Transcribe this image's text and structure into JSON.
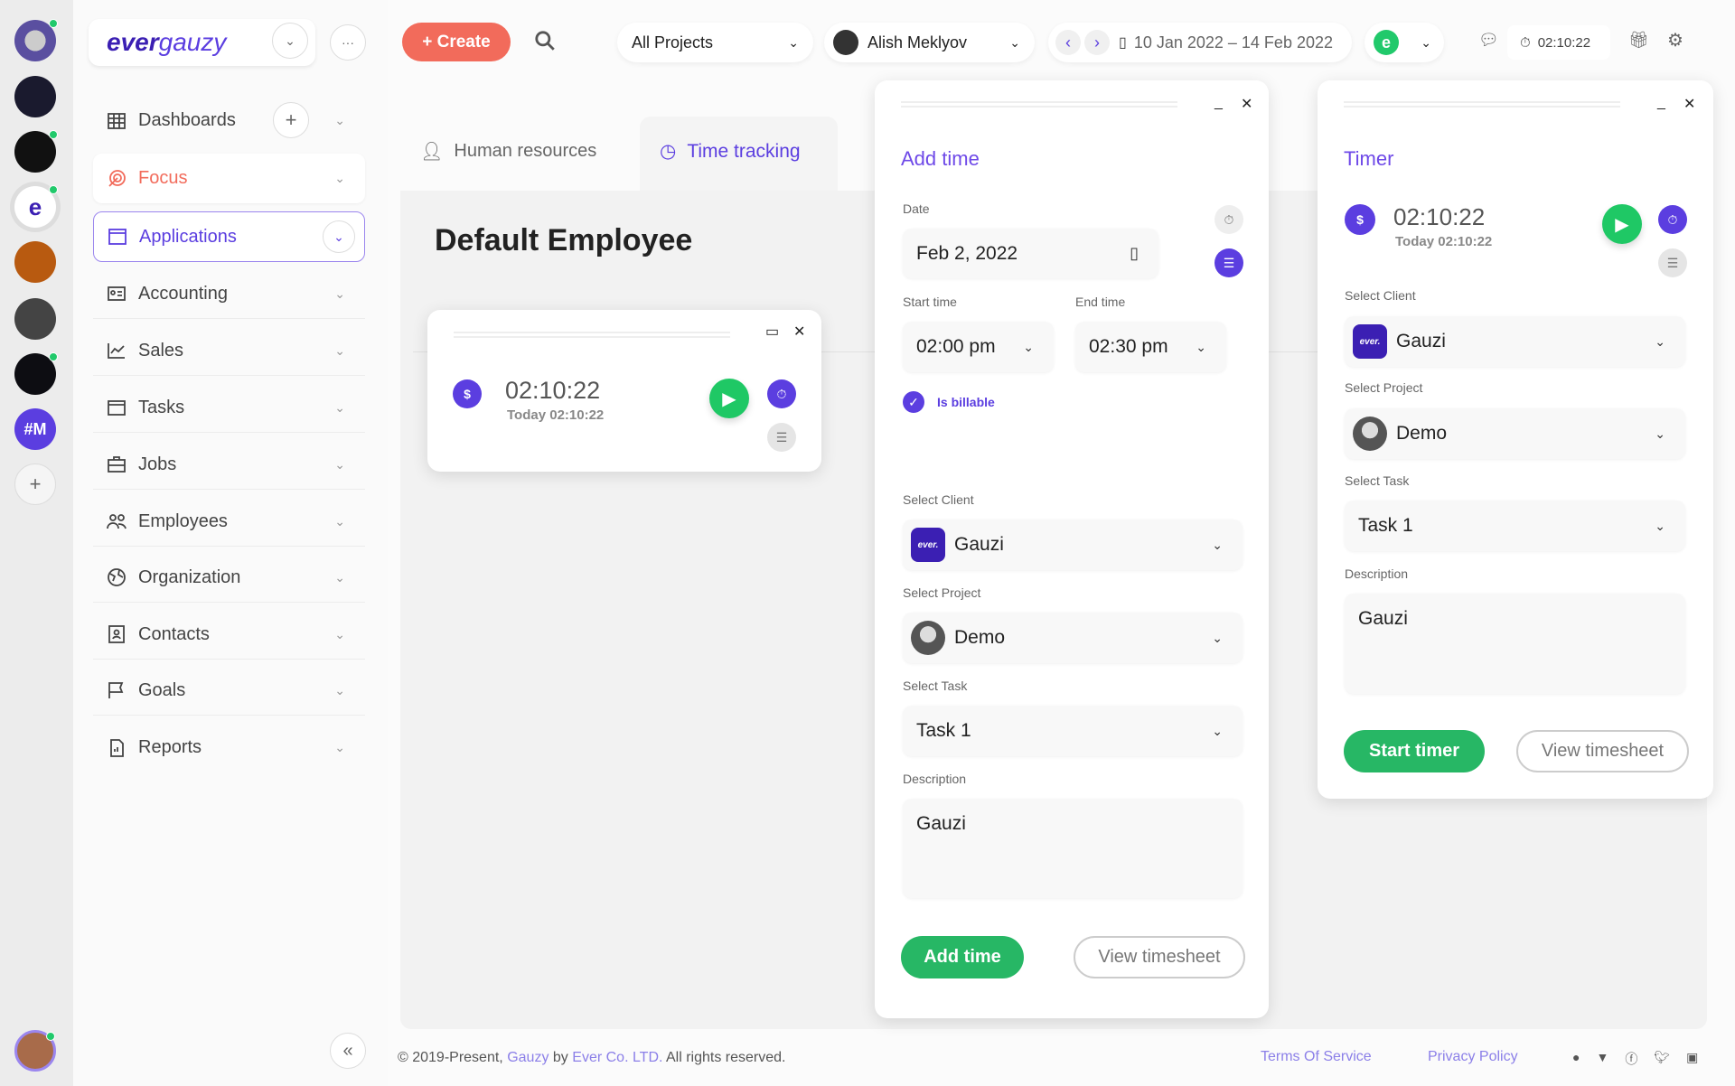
{
  "rail": {
    "workspace_initials": "#M",
    "active_letter": "e",
    "add": "+"
  },
  "logo": {
    "text_bold": "ever",
    "text_light": "gauzy"
  },
  "sidebar": {
    "items": [
      {
        "label": "Dashboards",
        "icon": "grid-icon"
      },
      {
        "label": "Focus",
        "icon": "target-icon"
      },
      {
        "label": "Applications",
        "icon": "window-icon"
      },
      {
        "label": "Accounting",
        "icon": "id-card-icon"
      },
      {
        "label": "Sales",
        "icon": "chart-line-icon"
      },
      {
        "label": "Tasks",
        "icon": "task-icon"
      },
      {
        "label": "Jobs",
        "icon": "briefcase-icon"
      },
      {
        "label": "Employees",
        "icon": "people-icon"
      },
      {
        "label": "Organization",
        "icon": "globe-icon"
      },
      {
        "label": "Contacts",
        "icon": "contacts-icon"
      },
      {
        "label": "Goals",
        "icon": "flag-icon"
      },
      {
        "label": "Reports",
        "icon": "report-icon"
      }
    ],
    "collapse": "«"
  },
  "header": {
    "create": "Create",
    "project_select": "All Projects",
    "user_select": "Alish Meklyov",
    "date_range": "10 Jan 2022 – 14 Feb 2022",
    "org_letter": "e",
    "timer": "02:10:22"
  },
  "tabs": [
    {
      "label": "Human resources"
    },
    {
      "label": "Time tracking",
      "active": true
    }
  ],
  "page": {
    "title": "Default Employee"
  },
  "mini_timer": {
    "time": "02:10:22",
    "today": "Today 02:10:22",
    "currency": "$"
  },
  "add_time": {
    "title": "Add time",
    "date_label": "Date",
    "date": "Feb 2, 2022",
    "start_label": "Start time",
    "start": "02:00 pm",
    "end_label": "End time",
    "end": "02:30 pm",
    "billable": "Is billable",
    "client_label": "Select Client",
    "client": "Gauzi",
    "client_logo": "ever.",
    "project_label": "Select Project",
    "project": "Demo",
    "task_label": "Select Task",
    "task": "Task 1",
    "description_label": "Description",
    "description": "Gauzi",
    "submit": "Add time",
    "view": "View timesheet"
  },
  "timer_panel": {
    "title": "Timer",
    "currency": "$",
    "time": "02:10:22",
    "today": "Today 02:10:22",
    "client_label": "Select Client",
    "client": "Gauzi",
    "client_logo": "ever.",
    "project_label": "Select Project",
    "project": "Demo",
    "task_label": "Select Task",
    "task": "Task 1",
    "description_label": "Description",
    "description": "Gauzi",
    "start": "Start timer",
    "view": "View timesheet"
  },
  "footer": {
    "copyright_pre": "© 2019-Present,",
    "gauzy": "Gauzy",
    "by": "by",
    "company": "Ever Co. LTD.",
    "rights": "All rights reserved.",
    "terms": "Terms Of Service",
    "privacy": "Privacy Policy"
  },
  "colors": {
    "accent": "#6e49e8",
    "create": "#f26b5b",
    "green": "#27b765",
    "focus": "#f26b5b"
  }
}
